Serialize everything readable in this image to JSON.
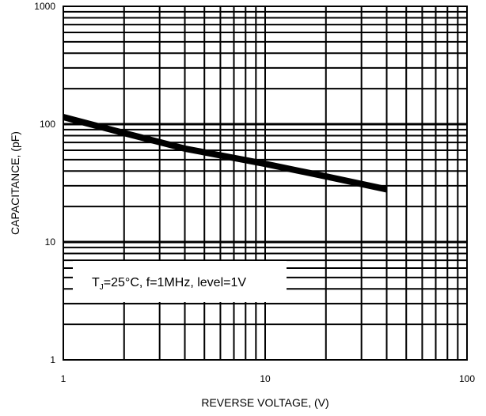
{
  "chart_data": {
    "type": "line",
    "title": "",
    "xlabel": "REVERSE VOLTAGE, (V)",
    "ylabel": "CAPACITANCE, (pF)",
    "x_scale": "log",
    "y_scale": "log",
    "xlim": [
      1,
      100
    ],
    "ylim": [
      1,
      1000
    ],
    "grid": true,
    "x_ticks": [
      1,
      10,
      100
    ],
    "y_ticks": [
      1,
      10,
      100,
      1000
    ],
    "x_tick_labels": [
      "1",
      "10",
      "100"
    ],
    "y_tick_labels": [
      "1",
      "10",
      "100",
      "1000"
    ],
    "annotation": {
      "prefix": "T",
      "subscript": "J",
      "suffix": "=25°C, f=1MHz, level=1V"
    },
    "series": [
      {
        "x": [
          1,
          2,
          4,
          10,
          20,
          40
        ],
        "y": [
          115,
          84,
          62,
          46,
          36,
          28
        ]
      }
    ],
    "line_color": "#000000"
  }
}
